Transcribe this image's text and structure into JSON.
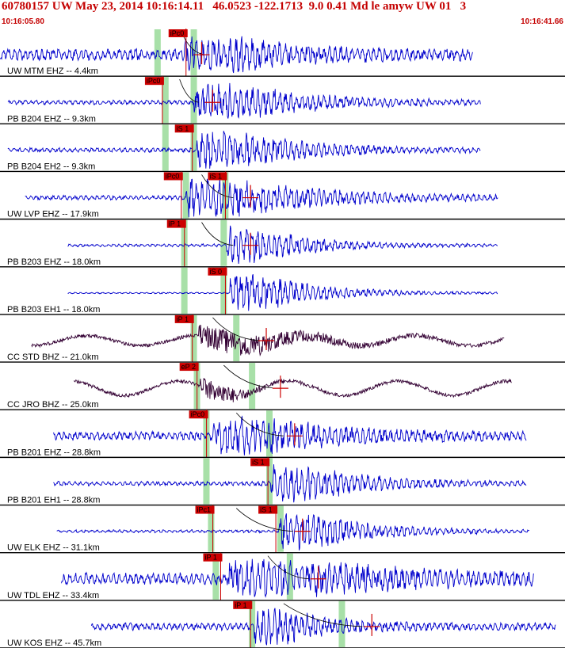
{
  "header": {
    "title": "60780157 UW May 23, 2014 10:16:14.11   46.0523 -122.1713  9.0 0.41 Md le amyw UW 01   3",
    "time_start": "10:16:05.80",
    "time_end": "10:16:41.66"
  },
  "chart_data": {
    "type": "line",
    "title": "60780157 UW May 23, 2014 10:16:14.11   46.0523 -122.1713  9.0 0.41 Md le amyw UW 01   3",
    "x_range": [
      "10:16:05.80",
      "10:16:41.66"
    ],
    "x_range_seconds": [
      0,
      35.86
    ],
    "grid": false,
    "colors": {
      "trace_blue": "#0000cc",
      "trace_dark": "#330033",
      "pick_red": "#cc0000",
      "pick_window_green": "#a8e0a8",
      "curve": "#000000"
    },
    "series": [
      {
        "label": "UW MTM EHZ -- 4.4km",
        "color": "#0000cc",
        "trace_start": 0.0,
        "trace_end": 30.0,
        "amp": 8,
        "style": "noisy",
        "onset": 11.7,
        "burst": 4.0,
        "picks": [
          {
            "label": "iPc0",
            "time": 10.7
          }
        ],
        "green_windows": [
          10.0,
          12.3
        ],
        "curve_start": 11.5,
        "curve_end": 13.0,
        "marker_time": 12.8
      },
      {
        "label": "PB B204 EHZ -- 9.3km",
        "color": "#0000cc",
        "trace_start": 0.5,
        "trace_end": 30.5,
        "amp": 3,
        "style": "noisy",
        "onset": 12.3,
        "burst": 5.0,
        "picks": [
          {
            "label": "iPc0",
            "time": 9.2
          }
        ],
        "green_windows": [
          10.5,
          12.3
        ],
        "curve_start": 11.4,
        "curve_end": 12.6,
        "marker_time": 13.5
      },
      {
        "label": "PB B204 EH2 -- 9.3km",
        "color": "#0000cc",
        "trace_start": 0.5,
        "trace_end": 30.5,
        "amp": 3,
        "style": "noisy",
        "onset": 12.5,
        "burst": 4.5,
        "picks": [
          {
            "label": "iS 1",
            "time": 11.1
          }
        ],
        "green_windows": [
          10.5,
          12.3
        ],
        "curve_start": null,
        "curve_end": null,
        "marker_time": null
      },
      {
        "label": "UW LVP EHZ -- 17.9km",
        "color": "#0000cc",
        "trace_start": 1.6,
        "trace_end": 31.6,
        "amp": 3,
        "style": "noisy",
        "onset": 11.8,
        "burst": 6.0,
        "picks": [
          {
            "label": "iPc0",
            "time": 10.4
          },
          {
            "label": "iS 1",
            "time": 13.2
          }
        ],
        "green_windows": [
          11.8,
          14.3
        ],
        "curve_start": 12.8,
        "curve_end": 14.8,
        "marker_time": 15.9
      },
      {
        "label": "PB B203 EHZ -- 18.0km",
        "color": "#0000cc",
        "trace_start": 4.3,
        "trace_end": 31.6,
        "amp": 2,
        "style": "noisy",
        "onset": 14.4,
        "burst": 3.5,
        "picks": [
          {
            "label": "iP 1",
            "time": 10.6
          }
        ],
        "green_windows": [
          11.7,
          14.2
        ],
        "curve_start": 12.8,
        "curve_end": 14.8,
        "marker_time": 15.9
      },
      {
        "label": "PB B203 EH1 -- 18.0km",
        "color": "#0000cc",
        "trace_start": 4.3,
        "trace_end": 31.6,
        "amp": 1,
        "style": "noisy",
        "onset": 14.6,
        "burst": 4.0,
        "picks": [
          {
            "label": "iS 0",
            "time": 13.2
          }
        ],
        "green_windows": [
          11.7,
          14.2
        ],
        "curve_start": null,
        "curve_end": null,
        "marker_time": null
      },
      {
        "label": "CC STD BHZ -- 21.0km",
        "color": "#330033",
        "trace_start": 2.0,
        "trace_end": 32.0,
        "amp": 7,
        "style": "wavy",
        "onset": 12.6,
        "burst": 4.0,
        "picks": [
          {
            "label": "iP 1",
            "time": 11.1
          }
        ],
        "green_windows": [
          12.3,
          15.0
        ],
        "curve_start": 13.5,
        "curve_end": 16.5,
        "marker_time": 16.9
      },
      {
        "label": "CC JRO BHZ -- 25.0km",
        "color": "#330033",
        "trace_start": 4.7,
        "trace_end": 32.5,
        "amp": 10,
        "style": "wavy",
        "onset": 12.7,
        "burst": 1.5,
        "picks": [
          {
            "label": "eP 2",
            "time": 11.4
          }
        ],
        "green_windows": [
          12.5,
          16.0
        ],
        "curve_start": 14.2,
        "curve_end": 17.5,
        "marker_time": 17.8
      },
      {
        "label": "PB B201 EHZ -- 28.8km",
        "color": "#0000cc",
        "trace_start": 3.4,
        "trace_end": 33.4,
        "amp": 6,
        "style": "noisy",
        "onset": 13.5,
        "burst": 5.0,
        "picks": [
          {
            "label": "iPc0",
            "time": 12.0
          }
        ],
        "green_windows": [
          13.1,
          17.1
        ],
        "curve_start": 15.0,
        "curve_end": 18.0,
        "marker_time": 18.7
      },
      {
        "label": "PB B201 EH1 -- 28.8km",
        "color": "#0000cc",
        "trace_start": 3.4,
        "trace_end": 33.4,
        "amp": 3,
        "style": "noisy",
        "onset": 17.2,
        "burst": 4.0,
        "picks": [
          {
            "label": "iS 1",
            "time": 15.9
          }
        ],
        "green_windows": [
          13.1,
          17.1
        ],
        "curve_start": null,
        "curve_end": null,
        "marker_time": null
      },
      {
        "label": "UW ELK EHZ -- 31.1km",
        "color": "#0000cc",
        "trace_start": 3.6,
        "trace_end": 33.6,
        "amp": 2,
        "style": "noisy",
        "onset": 17.7,
        "burst": 4.0,
        "picks": [
          {
            "label": "iPc1",
            "time": 12.4
          },
          {
            "label": "iS 1",
            "time": 16.4
          }
        ],
        "green_windows": [
          13.4,
          17.8
        ],
        "curve_start": 15.0,
        "curve_end": 18.6,
        "marker_time": 19.2
      },
      {
        "label": "UW TDL EHZ -- 33.4km",
        "color": "#0000cc",
        "trace_start": 3.9,
        "trace_end": 33.9,
        "amp": 8,
        "style": "noisy",
        "onset": 14.4,
        "burst": 7.0,
        "picks": [
          {
            "label": "iP 1",
            "time": 12.9
          }
        ],
        "green_windows": [
          13.7,
          18.4
        ],
        "curve_start": 17.0,
        "curve_end": 19.6,
        "marker_time": 20.2
      },
      {
        "label": "UW KOS EHZ -- 45.7km",
        "color": "#0000cc",
        "trace_start": 5.8,
        "trace_end": 35.3,
        "amp": 5,
        "style": "noisy",
        "onset": 16.1,
        "burst": 3.0,
        "picks": [
          {
            "label": "iP 1",
            "time": 14.8
          }
        ],
        "green_windows": [
          16.0,
          21.7
        ],
        "curve_start": 18.0,
        "curve_end": 23.0,
        "marker_time": 23.6
      }
    ]
  }
}
